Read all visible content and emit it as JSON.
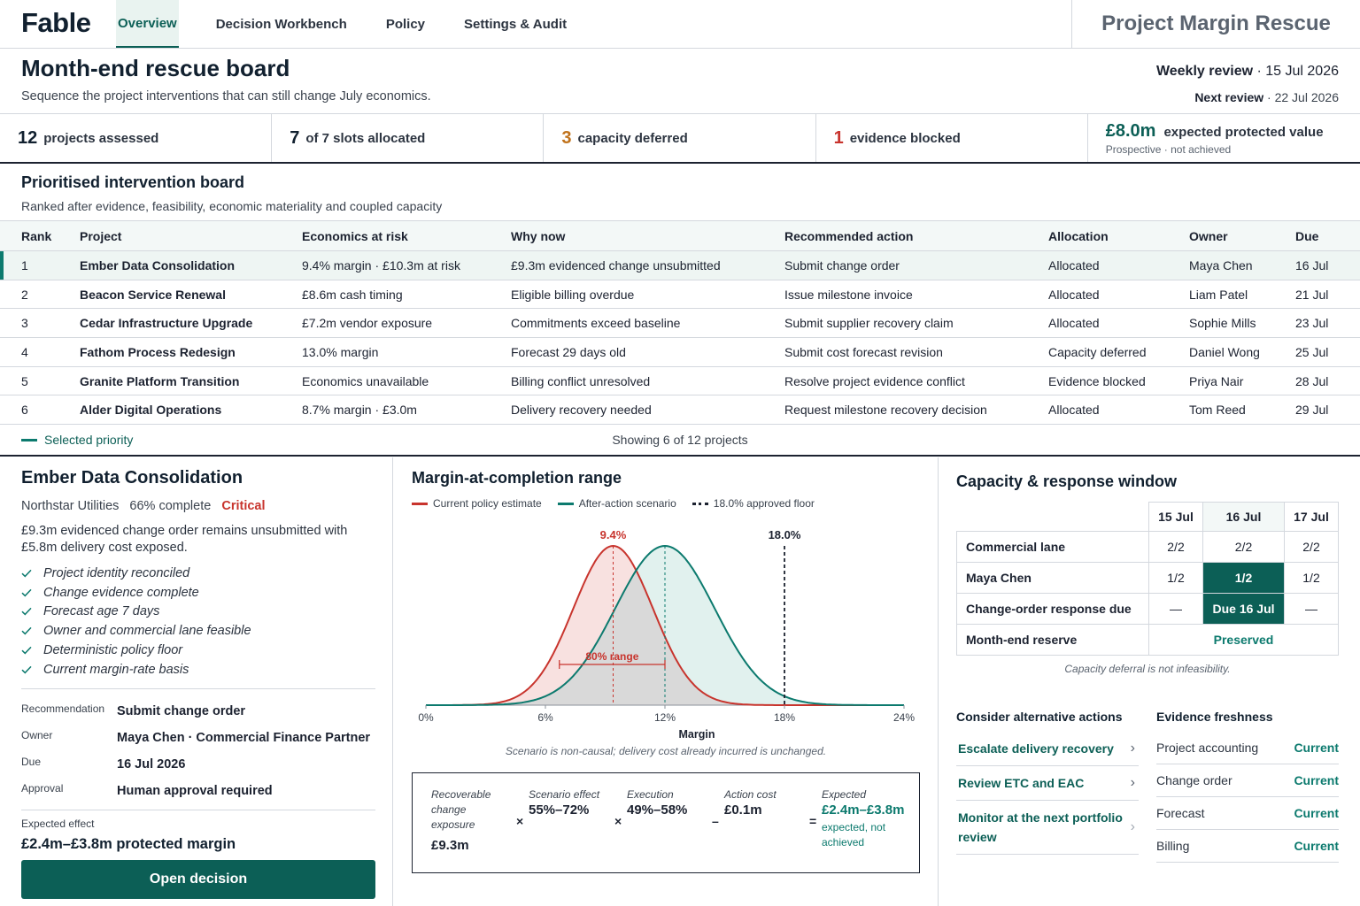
{
  "app": {
    "brand": "Fable",
    "tabs": [
      {
        "label": "Overview",
        "active": true
      },
      {
        "label": "Decision Workbench",
        "active": false
      },
      {
        "label": "Policy",
        "active": false
      },
      {
        "label": "Settings & Audit",
        "active": false
      }
    ],
    "project_title": "Project Margin Rescue"
  },
  "header": {
    "title": "Month-end rescue board",
    "subtitle": "Sequence the project interventions that can still change July economics.",
    "review_label": "Weekly review",
    "review_date": "15 Jul 2026",
    "next_review_label": "Next review",
    "next_review_date": "22 Jul 2026"
  },
  "kpis": [
    {
      "value": "12",
      "label": "projects assessed",
      "color": "#11202f"
    },
    {
      "value": "7",
      "label": "of 7 slots allocated",
      "color": "#11202f"
    },
    {
      "value": "3",
      "label": "capacity deferred",
      "color": "#c0721a"
    },
    {
      "value": "1",
      "label": "evidence blocked",
      "color": "#c8342d"
    }
  ],
  "protected_value": {
    "value": "£8.0m",
    "label": "expected protected value",
    "note": "Prospective · not achieved"
  },
  "board": {
    "title": "Prioritised intervention board",
    "subtitle": "Ranked after evidence, feasibility, economic materiality and coupled capacity",
    "columns": [
      "Rank",
      "Project",
      "Economics at risk",
      "Why now",
      "Recommended action",
      "Allocation",
      "Owner",
      "Due"
    ],
    "rows": [
      {
        "rank": "1",
        "project": "Ember Data Consolidation",
        "economics": "9.4% margin · £10.3m at risk",
        "why": "£9.3m evidenced change unsubmitted",
        "action": "Submit change order",
        "allocation": "Allocated",
        "status": "allocated",
        "owner": "Maya Chen",
        "due": "16 Jul",
        "selected": true
      },
      {
        "rank": "2",
        "project": "Beacon Service Renewal",
        "economics": "£8.6m cash timing",
        "why": "Eligible billing overdue",
        "action": "Issue milestone invoice",
        "allocation": "Allocated",
        "status": "allocated",
        "owner": "Liam Patel",
        "due": "21 Jul"
      },
      {
        "rank": "3",
        "project": "Cedar Infrastructure Upgrade",
        "economics": "£7.2m vendor exposure",
        "why": "Commitments exceed baseline",
        "action": "Submit supplier recovery claim",
        "allocation": "Allocated",
        "status": "allocated",
        "owner": "Sophie Mills",
        "due": "23 Jul"
      },
      {
        "rank": "4",
        "project": "Fathom Process Redesign",
        "economics": "13.0% margin",
        "why": "Forecast 29 days old",
        "action": "Submit cost forecast revision",
        "allocation": "Capacity deferred",
        "status": "deferred",
        "owner": "Daniel Wong",
        "due": "25 Jul"
      },
      {
        "rank": "5",
        "project": "Granite Platform Transition",
        "economics": "Economics unavailable",
        "why": "Billing conflict unresolved",
        "action": "Resolve project evidence conflict",
        "allocation": "Evidence blocked",
        "status": "blocked",
        "owner": "Priya Nair",
        "due": "28 Jul"
      },
      {
        "rank": "6",
        "project": "Alder Digital Operations",
        "economics": "8.7% margin · £3.0m",
        "why": "Delivery recovery needed",
        "action": "Request milestone recovery decision",
        "allocation": "Allocated",
        "status": "allocated",
        "owner": "Tom Reed",
        "due": "29 Jul"
      }
    ],
    "legend_selected": "Selected priority",
    "showing": "Showing 6 of 12 projects"
  },
  "detail": {
    "title": "Ember Data Consolidation",
    "client": "Northstar Utilities",
    "complete": "66% complete",
    "severity": "Critical",
    "description": "£9.3m evidenced change order remains unsubmitted with £5.8m delivery cost exposed.",
    "checks": [
      "Project identity reconciled",
      "Change evidence complete",
      "Forecast age 7 days",
      "Owner and commercial lane feasible",
      "Deterministic policy floor",
      "Current margin-rate basis"
    ],
    "fields": [
      {
        "key": "Recommendation",
        "value": "Submit change order"
      },
      {
        "key": "Owner",
        "value": "Maya Chen · Commercial Finance Partner"
      },
      {
        "key": "Due",
        "value": "16 Jul 2026"
      },
      {
        "key": "Approval",
        "value": "Human approval required"
      }
    ],
    "effect_label": "Expected effect",
    "effect_value": "£2.4m–£3.8m protected margin",
    "open_button": "Open decision"
  },
  "chart_data": {
    "type": "area",
    "title": "Margin-at-completion range",
    "xlabel": "Margin",
    "x_ticks": [
      "0%",
      "6%",
      "12%",
      "18%",
      "24%"
    ],
    "xlim": [
      0,
      24
    ],
    "series": [
      {
        "name": "Current policy estimate",
        "mean": 9.4,
        "sd": 2.0,
        "color": "#c8342d",
        "fill": "#f7dcdb"
      },
      {
        "name": "After-action scenario",
        "mean": 12.0,
        "sd": 2.5,
        "color": "#0c7a6e",
        "fill": "#dcefeb"
      }
    ],
    "floor": {
      "name": "18.0% approved floor",
      "value": 18.0,
      "label": "18.0%"
    },
    "current_label": "9.4%",
    "range": {
      "label": "80% range",
      "low": 6.7,
      "high": 12.0
    },
    "note": "Scenario is non-causal; delivery cost already incurred is unchanged."
  },
  "calc": {
    "terms": [
      {
        "label": "Recoverable change exposure",
        "value": "£9.3m"
      },
      {
        "label": "Scenario effect",
        "value": "55%–72%"
      },
      {
        "label": "Execution",
        "value": "49%–58%"
      },
      {
        "label": "Action cost",
        "value": "£0.1m"
      },
      {
        "label": "Expected",
        "value": "£2.4m–£3.8m"
      }
    ],
    "operators": [
      "×",
      "×",
      "–",
      "="
    ],
    "result_note": "expected, not achieved"
  },
  "capacity": {
    "title": "Capacity & response window",
    "days": [
      "15 Jul",
      "16 Jul",
      "17 Jul"
    ],
    "rows": [
      {
        "label": "Commercial lane",
        "cells": [
          "2/2",
          "2/2",
          "2/2"
        ]
      },
      {
        "label": "Maya Chen",
        "cells": [
          "1/2",
          "1/2",
          "1/2"
        ]
      },
      {
        "label": "Change-order response due",
        "cells": [
          "—",
          "Due 16 Jul",
          "—"
        ]
      },
      {
        "label": "Month-end reserve",
        "value": "Preserved"
      }
    ],
    "note": "Capacity deferral is not infeasibility.",
    "alternatives_title": "Consider alternative actions",
    "alternatives": [
      {
        "label": "Escalate delivery recovery"
      },
      {
        "label": "Review ETC and EAC"
      },
      {
        "label": "Monitor at the next portfolio review"
      }
    ],
    "freshness_title": "Evidence freshness",
    "freshness": [
      {
        "label": "Project accounting",
        "status": "Current"
      },
      {
        "label": "Change order",
        "status": "Current"
      },
      {
        "label": "Forecast",
        "status": "Current"
      },
      {
        "label": "Billing",
        "status": "Current"
      }
    ]
  }
}
